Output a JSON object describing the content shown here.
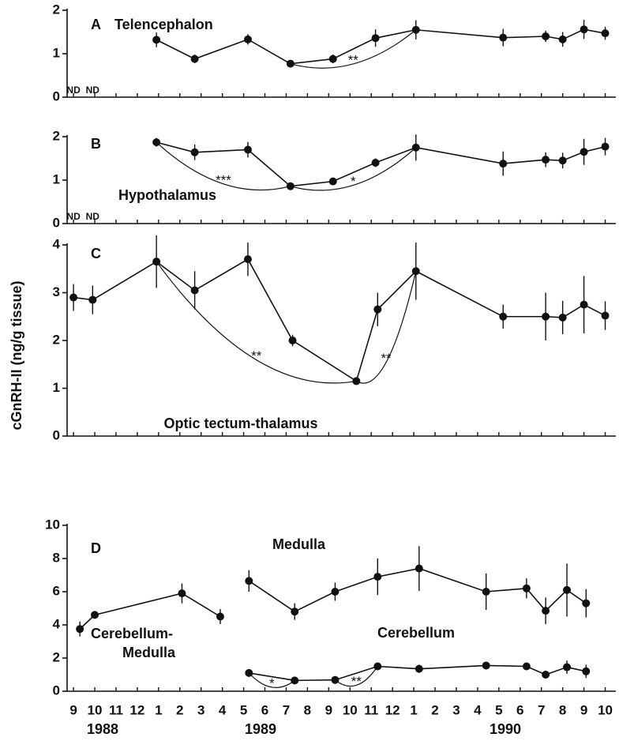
{
  "chart_data": [
    {
      "type": "line",
      "panel": "A",
      "label": "Telencephalon",
      "x": [
        12.9,
        14.7,
        17.2,
        19.2,
        21.2,
        23.2,
        25.1,
        29.2,
        31.2,
        32.0,
        33.0,
        34.0
      ],
      "values": [
        1.32,
        0.88,
        1.33,
        0.77,
        0.88,
        1.36,
        1.55,
        1.37,
        1.4,
        1.33,
        1.56,
        1.47
      ],
      "errors": [
        0.17,
        0.1,
        0.12,
        0.05,
        0.1,
        0.2,
        0.22,
        0.2,
        0.13,
        0.17,
        0.22,
        0.15
      ],
      "ylim": [
        0,
        2
      ],
      "yticks": [
        0,
        1,
        2
      ],
      "xlim": [
        8.7,
        34.5
      ],
      "annotations": [
        {
          "text": "**",
          "from": 3,
          "to": 6
        }
      ],
      "nd": [
        {
          "label": "ND",
          "x": 9
        },
        {
          "label": "ND",
          "x": 9.9
        }
      ]
    },
    {
      "type": "line",
      "panel": "B",
      "label": "Hypothalamus",
      "x": [
        12.9,
        14.7,
        17.2,
        19.2,
        21.2,
        23.2,
        25.1,
        29.2,
        31.2,
        32.0,
        33.0,
        34.0
      ],
      "values": [
        1.87,
        1.64,
        1.7,
        0.86,
        0.97,
        1.4,
        1.75,
        1.38,
        1.47,
        1.45,
        1.65,
        1.77
      ],
      "errors": [
        0.1,
        0.18,
        0.18,
        0.04,
        0.08,
        0.1,
        0.3,
        0.28,
        0.17,
        0.18,
        0.3,
        0.2
      ],
      "ylim": [
        0,
        2
      ],
      "yticks": [
        0,
        1,
        2
      ],
      "xlim": [
        8.7,
        34.5
      ],
      "annotations": [
        {
          "text": "***",
          "from": 0,
          "to": 3
        },
        {
          "text": "*",
          "from": 3,
          "to": 6
        }
      ],
      "nd": [
        {
          "label": "ND",
          "x": 9
        },
        {
          "label": "ND",
          "x": 9.9
        }
      ]
    },
    {
      "type": "line",
      "panel": "C",
      "label": "Optic tectum-thalamus",
      "x": [
        9.0,
        9.9,
        12.9,
        14.7,
        17.2,
        19.3,
        22.3,
        23.3,
        25.1,
        29.2,
        31.2,
        32.0,
        33.0,
        34.0
      ],
      "values": [
        2.9,
        2.85,
        3.65,
        3.05,
        3.7,
        2.0,
        1.15,
        2.65,
        3.45,
        2.5,
        2.5,
        2.48,
        2.75,
        2.52
      ],
      "errors": [
        0.28,
        0.3,
        0.55,
        0.4,
        0.35,
        0.12,
        0.05,
        0.35,
        0.6,
        0.25,
        0.5,
        0.35,
        0.6,
        0.3
      ],
      "ylim": [
        0,
        4
      ],
      "yticks": [
        0,
        1,
        2,
        3,
        4
      ],
      "xlim": [
        8.7,
        34.5
      ],
      "annotations": [
        {
          "text": "**",
          "from": 2,
          "to": 6
        },
        {
          "text": "**",
          "from": 6,
          "to": 8
        }
      ]
    },
    {
      "type": "line",
      "panel": "D",
      "ylabel": "cGnRH-II (ng/g tissue)",
      "ylim": [
        0,
        10
      ],
      "yticks": [
        0,
        2,
        4,
        6,
        8,
        10
      ],
      "xlim": [
        8.7,
        34.5
      ],
      "xticks": [
        9,
        10,
        11,
        12,
        {
          "value": 13,
          "label": "1"
        },
        {
          "value": 14,
          "label": "2"
        },
        {
          "value": 15,
          "label": "3"
        },
        {
          "value": 16,
          "label": "4"
        },
        {
          "value": 17,
          "label": "5"
        },
        {
          "value": 18,
          "label": "6"
        },
        {
          "value": 19,
          "label": "7"
        },
        {
          "value": 20,
          "label": "8"
        },
        {
          "value": 21,
          "label": "9"
        },
        {
          "value": 22,
          "label": "10"
        },
        {
          "value": 23,
          "label": "11"
        },
        {
          "value": 24,
          "label": "12"
        },
        {
          "value": 25,
          "label": "1"
        },
        {
          "value": 26,
          "label": "2"
        },
        {
          "value": 27,
          "label": "3"
        },
        {
          "value": 28,
          "label": "4"
        },
        {
          "value": 29,
          "label": "5"
        },
        {
          "value": 30,
          "label": "6"
        },
        {
          "value": 31,
          "label": "7"
        },
        {
          "value": 32,
          "label": "8"
        },
        {
          "value": 33,
          "label": "9"
        },
        {
          "value": 34,
          "label": "10"
        }
      ],
      "years": [
        "1988",
        "1989",
        "1990"
      ],
      "series": [
        {
          "label_lines": [
            "Cerebellum-",
            "Medulla"
          ],
          "x": [
            9.3,
            10.0,
            14.1,
            15.9
          ],
          "values": [
            3.75,
            4.6,
            5.9,
            4.5
          ],
          "errors": [
            0.45,
            0.2,
            0.6,
            0.45
          ],
          "annotations": []
        },
        {
          "label_lines": [
            "Medulla"
          ],
          "x": [
            17.25,
            19.4,
            21.3,
            23.3,
            25.25,
            28.4,
            30.3,
            31.2,
            32.2,
            33.1
          ],
          "values": [
            6.65,
            4.8,
            6.0,
            6.9,
            7.4,
            6.0,
            6.2,
            4.85,
            6.1,
            5.3
          ],
          "errors": [
            0.65,
            0.5,
            0.55,
            1.1,
            1.35,
            1.1,
            0.6,
            0.8,
            1.6,
            0.85
          ],
          "annotations": []
        },
        {
          "label_lines": [
            "Cerebellum"
          ],
          "x": [
            17.25,
            19.4,
            21.3,
            23.3,
            25.25,
            28.4,
            30.3,
            31.2,
            32.2,
            33.1
          ],
          "values": [
            1.1,
            0.65,
            0.68,
            1.5,
            1.35,
            1.55,
            1.5,
            1.0,
            1.45,
            1.2
          ],
          "errors": [
            0.05,
            0.05,
            0.05,
            0.1,
            0.25,
            0.1,
            0.1,
            0.1,
            0.4,
            0.4
          ],
          "annotations": [
            {
              "text": "*",
              "from": 0,
              "to": 1
            },
            {
              "text": "**",
              "from": 2,
              "to": 3
            }
          ]
        }
      ]
    }
  ]
}
